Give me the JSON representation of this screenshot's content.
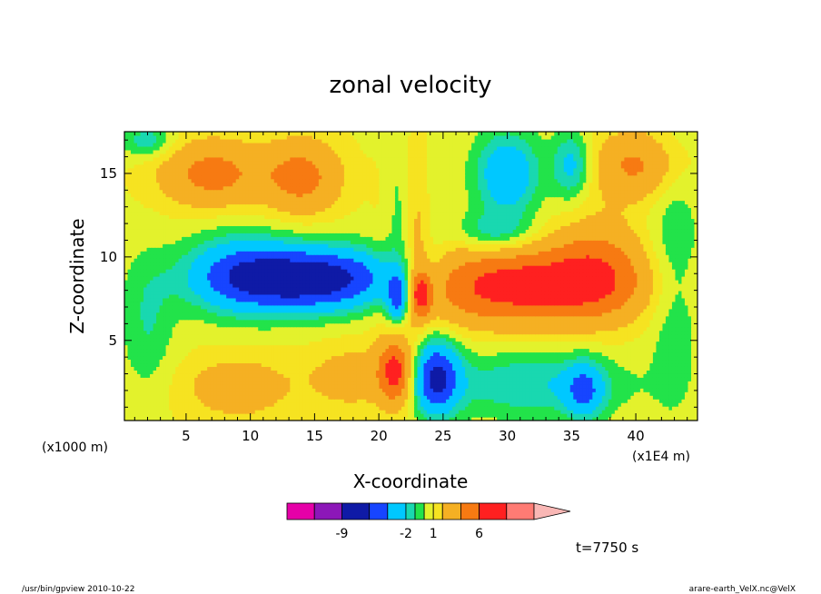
{
  "chart_data": {
    "type": "heatmap",
    "title": "zonal velocity",
    "xlabel": "X-coordinate",
    "ylabel": "Z-coordinate",
    "x_unit_label": "(x1000 m)",
    "x_scale_label": "(x1E4 m)",
    "xlim": [
      0.2,
      44.8
    ],
    "ylim": [
      0.2,
      17.5
    ],
    "x_ticks": [
      5,
      10,
      15,
      20,
      25,
      30,
      35,
      40
    ],
    "y_ticks": [
      5,
      10,
      15
    ],
    "colorbar": {
      "levels": [
        -15,
        -12,
        -9,
        -6,
        -4,
        -2,
        -1,
        0,
        1,
        2,
        4,
        6,
        9,
        12
      ],
      "colors": [
        "#e600a8",
        "#8c17b8",
        "#0f1aa6",
        "#1745ff",
        "#00c8ff",
        "#19d8b0",
        "#22e34a",
        "#e3f22c",
        "#f6e321",
        "#f5b023",
        "#f77a12",
        "#ff2020",
        "#ff7b74",
        "#f9b7b5"
      ],
      "tick_labels": [
        "-9",
        "-2",
        "1",
        "6"
      ]
    },
    "annotation": "t=7750 s"
  },
  "footer": {
    "left": "/usr/bin/gpview   2010-10-22",
    "right": "arare-earth_VelX.nc@VelX"
  }
}
